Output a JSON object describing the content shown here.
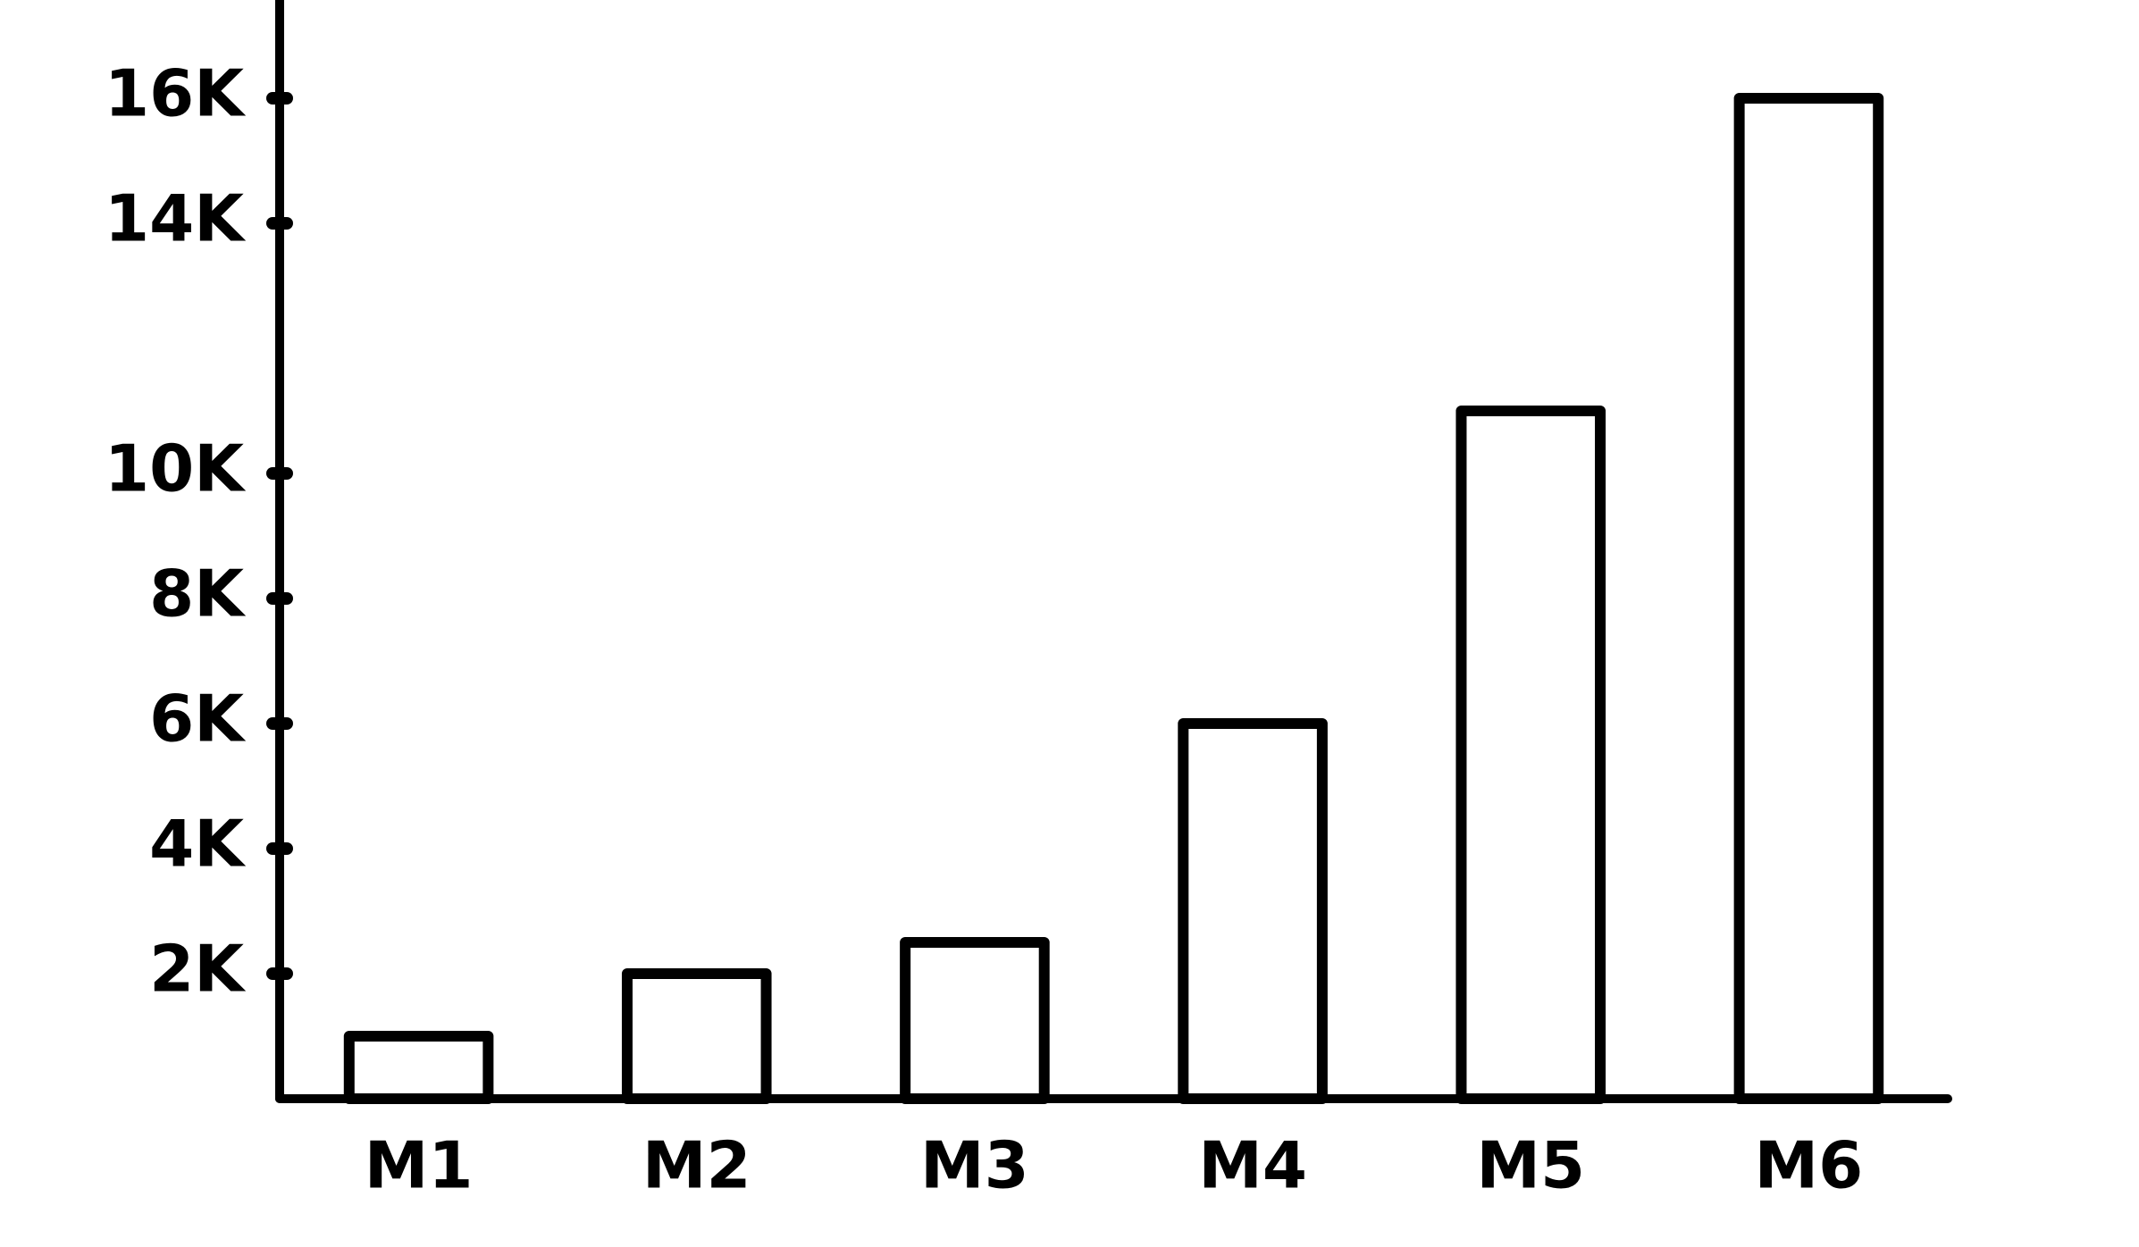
{
  "chart_data": {
    "type": "bar",
    "categories": [
      "M1",
      "M2",
      "M3",
      "M4",
      "M5",
      "M6"
    ],
    "values": [
      1000,
      2000,
      2500,
      6000,
      11000,
      16000
    ],
    "color": "#ffffff",
    "ylim": [
      0,
      17000
    ],
    "yticks": [
      {
        "value": 2000,
        "label": "2K"
      },
      {
        "value": 4000,
        "label": "4K"
      },
      {
        "value": 6000,
        "label": "6K"
      },
      {
        "value": 8000,
        "label": "8K"
      },
      {
        "value": 10000,
        "label": "10K"
      },
      {
        "value": 14000,
        "label": "14K"
      },
      {
        "value": 16000,
        "label": "16K"
      }
    ],
    "grid": false
  }
}
